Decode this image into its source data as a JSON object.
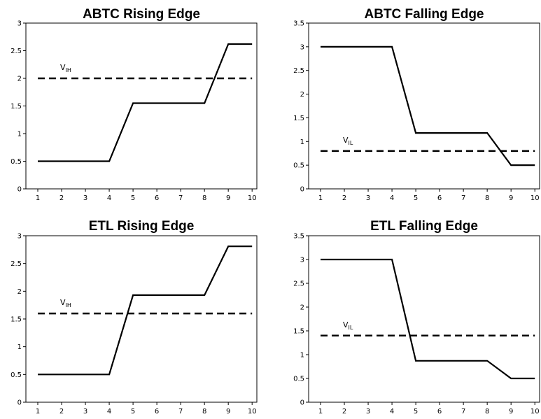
{
  "chart_data": [
    {
      "type": "line",
      "title": "ABTC Rising Edge",
      "xlabel": "",
      "ylabel": "",
      "x": [
        1,
        2,
        3,
        4,
        5,
        6,
        7,
        8,
        9,
        10
      ],
      "xlim": [
        0.5,
        10.2
      ],
      "ylim": [
        0,
        3
      ],
      "yticks": [
        0,
        0.5,
        1,
        1.5,
        2,
        2.5,
        3
      ],
      "grid": false,
      "series": [
        {
          "values": [
            0.5,
            0.5,
            0.5,
            0.5,
            1.55,
            1.55,
            1.55,
            1.55,
            2.62,
            2.62
          ],
          "color": "#000000",
          "style": "solid"
        }
      ],
      "reference_line": {
        "label": "V",
        "subscript": "IH",
        "value": 2.0,
        "style": "dashed",
        "label_x": 2
      }
    },
    {
      "type": "line",
      "title": "ABTC Falling Edge",
      "xlabel": "",
      "ylabel": "",
      "x": [
        1,
        2,
        3,
        4,
        5,
        6,
        7,
        8,
        9,
        10
      ],
      "xlim": [
        0.5,
        10.2
      ],
      "ylim": [
        0,
        3.5
      ],
      "yticks": [
        0,
        0.5,
        1,
        1.5,
        2,
        2.5,
        3,
        3.5
      ],
      "grid": false,
      "series": [
        {
          "values": [
            3.0,
            3.0,
            3.0,
            3.0,
            1.18,
            1.18,
            1.18,
            1.18,
            0.5,
            0.5
          ],
          "color": "#000000",
          "style": "solid"
        }
      ],
      "reference_line": {
        "label": "V",
        "subscript": "IL",
        "value": 0.8,
        "style": "dashed",
        "label_x": 2
      }
    },
    {
      "type": "line",
      "title": "ETL Rising Edge",
      "xlabel": "",
      "ylabel": "",
      "x": [
        1,
        2,
        3,
        4,
        5,
        6,
        7,
        8,
        9,
        10
      ],
      "xlim": [
        0.5,
        10.2
      ],
      "ylim": [
        0,
        3
      ],
      "yticks": [
        0,
        0.5,
        1,
        1.5,
        2,
        2.5,
        3
      ],
      "grid": false,
      "series": [
        {
          "values": [
            0.5,
            0.5,
            0.5,
            0.5,
            1.93,
            1.93,
            1.93,
            1.93,
            2.81,
            2.81
          ],
          "color": "#000000",
          "style": "solid"
        }
      ],
      "reference_line": {
        "label": "V",
        "subscript": "IH",
        "value": 1.6,
        "style": "dashed",
        "label_x": 2
      }
    },
    {
      "type": "line",
      "title": "ETL Falling Edge",
      "xlabel": "",
      "ylabel": "",
      "x": [
        1,
        2,
        3,
        4,
        5,
        6,
        7,
        8,
        9,
        10
      ],
      "xlim": [
        0.5,
        10.2
      ],
      "ylim": [
        0,
        3.5
      ],
      "yticks": [
        0,
        0.5,
        1,
        1.5,
        2,
        2.5,
        3,
        3.5
      ],
      "grid": false,
      "series": [
        {
          "values": [
            3.0,
            3.0,
            3.0,
            3.0,
            0.87,
            0.87,
            0.87,
            0.87,
            0.5,
            0.5
          ],
          "color": "#000000",
          "style": "solid"
        }
      ],
      "reference_line": {
        "label": "V",
        "subscript": "IL",
        "value": 1.4,
        "style": "dashed",
        "label_x": 2
      }
    }
  ]
}
